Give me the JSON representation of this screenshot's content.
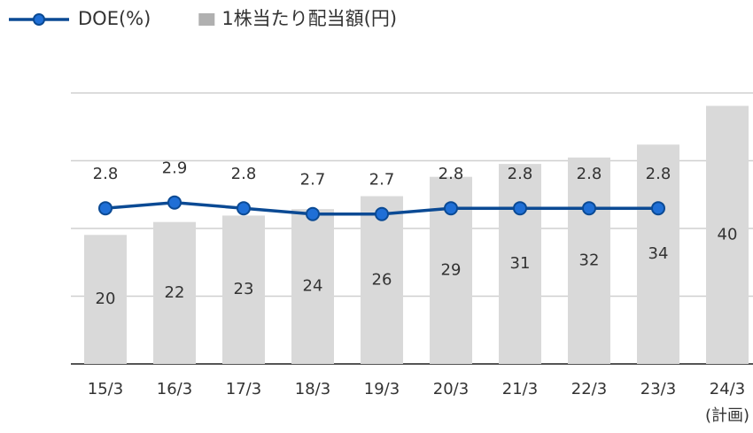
{
  "chart_data": {
    "type": "bar",
    "categories": [
      "15/3",
      "16/3",
      "17/3",
      "18/3",
      "19/3",
      "20/3",
      "21/3",
      "22/3",
      "23/3",
      "24/3\n(計画)"
    ],
    "series": [
      {
        "name": "DOE(%)",
        "type": "line",
        "axis": "y2",
        "color": "#0b4a94",
        "marker_color": "#1f6fd6",
        "values": [
          2.8,
          2.9,
          2.8,
          2.7,
          2.7,
          2.8,
          2.8,
          2.8,
          2.8,
          null
        ]
      },
      {
        "name": "1株当たり配当額(円)",
        "type": "bar",
        "color": "#d9d9d9",
        "values": [
          20,
          22,
          23,
          24,
          26,
          29,
          31,
          32,
          34,
          40
        ]
      }
    ],
    "ylim": [
      0,
      42
    ],
    "yticks": [
      0,
      10.5,
      21,
      31.5,
      42
    ],
    "y2lim": [
      0.1,
      4.8
    ],
    "grid": true,
    "legend": "top-left"
  }
}
